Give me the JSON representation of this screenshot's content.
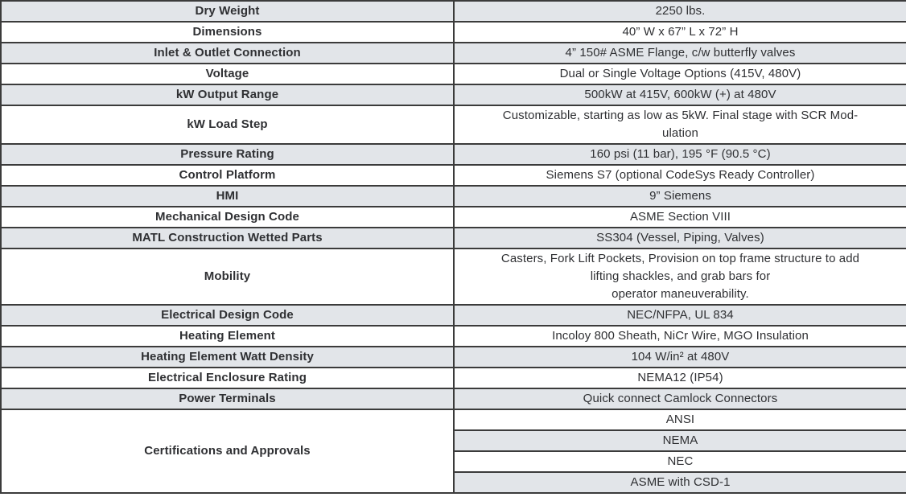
{
  "table": {
    "rows": [
      {
        "label": "Dry Weight",
        "value": "2250 lbs."
      },
      {
        "label": "Dimensions",
        "value": "40” W x 67” L x 72” H"
      },
      {
        "label": "Inlet & Outlet Connection",
        "value": "4” 150# ASME Flange, c/w butterfly valves"
      },
      {
        "label": "Voltage",
        "value": "Dual or Single Voltage Options (415V, 480V)"
      },
      {
        "label": "kW Output Range",
        "value": "500kW at 415V, 600kW (+) at 480V"
      },
      {
        "label": "kW Load Step",
        "value": "Customizable, starting as low as 5kW. Final stage with SCR Mod-\nulation"
      },
      {
        "label": "Pressure Rating",
        "value": "160 psi (11 bar), 195 °F (90.5 °C)"
      },
      {
        "label": "Control Platform",
        "value": "Siemens S7 (optional CodeSys Ready Controller)"
      },
      {
        "label": "HMI",
        "value": "9” Siemens"
      },
      {
        "label": "Mechanical Design Code",
        "value": "ASME Section VIII"
      },
      {
        "label": "MATL Construction Wetted Parts",
        "value": "SS304 (Vessel, Piping, Valves)"
      },
      {
        "label": "Mobility",
        "value": "Casters, Fork Lift Pockets, Provision on top frame structure to add\nlifting shackles, and grab bars for\noperator maneuverability."
      },
      {
        "label": "Electrical Design Code",
        "value": "NEC/NFPA, UL 834"
      },
      {
        "label": "Heating Element",
        "value": "Incoloy 800 Sheath, NiCr Wire, MGO Insulation"
      },
      {
        "label": "Heating Element Watt Density",
        "value": "104 W/in² at 480V"
      },
      {
        "label": "Electrical Enclosure Rating",
        "value": "NEMA12 (IP54)"
      },
      {
        "label": "Power Terminals",
        "value": "Quick connect Camlock Connectors"
      },
      {
        "label": "Certifications and Approvals",
        "values": [
          "ANSI",
          "NEMA",
          "NEC",
          "ASME with CSD-1"
        ]
      }
    ]
  },
  "colors": {
    "row_shaded": "#e2e5e9",
    "row_plain": "#ffffff",
    "border": "#3b3b3b",
    "label_text": "#232427",
    "value_text": "#2f3033"
  }
}
